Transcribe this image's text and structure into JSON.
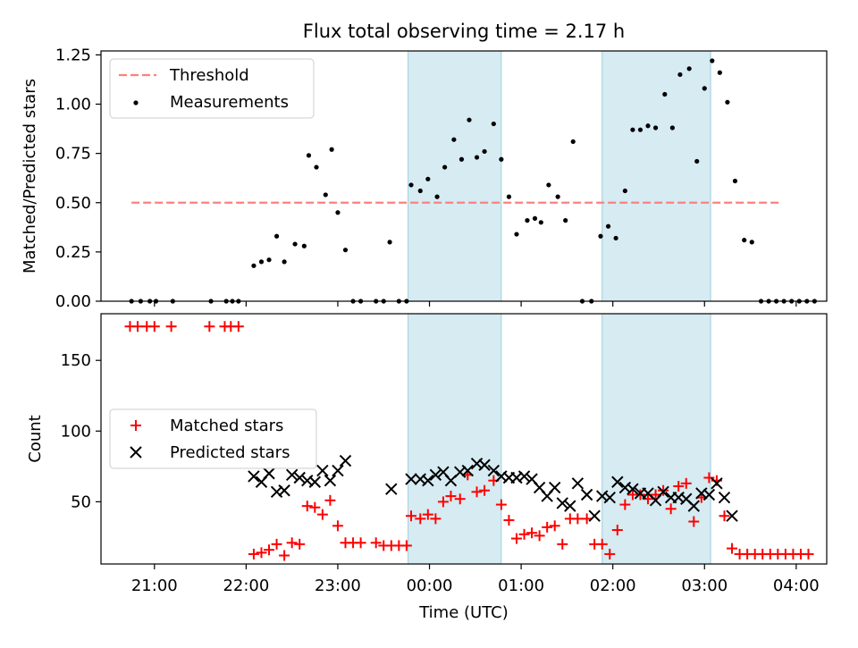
{
  "chart_data": [
    {
      "type": "scatter",
      "title": "Flux total observing time = 2.17 h",
      "xlabel": "",
      "ylabel": "Matched/Predicted stars",
      "xlim": [
        20.417,
        4.333
      ],
      "ylim": [
        0,
        1.27
      ],
      "yticks": [
        0,
        0.25,
        0.5,
        0.75,
        1.0,
        1.25
      ],
      "ytick_labels": [
        "0.00",
        "0.25",
        "0.50",
        "0.75",
        "1.00",
        "1.25"
      ],
      "legend": {
        "position": "top-left",
        "entries": [
          "Threshold",
          "Measurements"
        ]
      },
      "threshold": {
        "name": "Threshold",
        "value": 0.5,
        "x_start": "20:45",
        "x_end": "03:50",
        "color": "#ff7f7f"
      },
      "shaded_spans": [
        [
          "23:46",
          "00:47"
        ],
        [
          "01:53",
          "03:04"
        ]
      ],
      "series": [
        {
          "name": "Measurements",
          "color": "#000000",
          "points": [
            [
              "20:45",
              0
            ],
            [
              "20:51",
              0
            ],
            [
              "20:57",
              0
            ],
            [
              "21:01",
              0
            ],
            [
              "21:12",
              0
            ],
            [
              "21:37",
              0
            ],
            [
              "21:47",
              0
            ],
            [
              "21:51",
              0
            ],
            [
              "21:55",
              0
            ],
            [
              "22:05",
              0.18
            ],
            [
              "22:10",
              0.2
            ],
            [
              "22:15",
              0.21
            ],
            [
              "22:20",
              0.33
            ],
            [
              "22:25",
              0.2
            ],
            [
              "22:32",
              0.29
            ],
            [
              "22:38",
              0.28
            ],
            [
              "22:41",
              0.74
            ],
            [
              "22:46",
              0.68
            ],
            [
              "22:52",
              0.54
            ],
            [
              "22:56",
              0.77
            ],
            [
              "23:00",
              0.45
            ],
            [
              "23:05",
              0.26
            ],
            [
              "23:10",
              0
            ],
            [
              "23:15",
              0
            ],
            [
              "23:25",
              0
            ],
            [
              "23:30",
              0
            ],
            [
              "23:34",
              0.3
            ],
            [
              "23:40",
              0
            ],
            [
              "23:45",
              0
            ],
            [
              "23:48",
              0.59
            ],
            [
              "23:54",
              0.56
            ],
            [
              "23:59",
              0.62
            ],
            [
              "00:05",
              0.53
            ],
            [
              "00:10",
              0.68
            ],
            [
              "00:16",
              0.82
            ],
            [
              "00:21",
              0.72
            ],
            [
              "00:26",
              0.92
            ],
            [
              "00:31",
              0.73
            ],
            [
              "00:36",
              0.76
            ],
            [
              "00:42",
              0.9
            ],
            [
              "00:47",
              0.72
            ],
            [
              "00:52",
              0.53
            ],
            [
              "00:57",
              0.34
            ],
            [
              "01:04",
              0.41
            ],
            [
              "01:09",
              0.42
            ],
            [
              "01:13",
              0.4
            ],
            [
              "01:18",
              0.59
            ],
            [
              "01:24",
              0.53
            ],
            [
              "01:29",
              0.41
            ],
            [
              "01:34",
              0.81
            ],
            [
              "01:40",
              0
            ],
            [
              "01:46",
              0
            ],
            [
              "01:52",
              0.33
            ],
            [
              "01:57",
              0.38
            ],
            [
              "02:02",
              0.32
            ],
            [
              "02:08",
              0.56
            ],
            [
              "02:13",
              0.87
            ],
            [
              "02:18",
              0.87
            ],
            [
              "02:23",
              0.89
            ],
            [
              "02:28",
              0.88
            ],
            [
              "02:34",
              1.05
            ],
            [
              "02:39",
              0.88
            ],
            [
              "02:44",
              1.15
            ],
            [
              "02:50",
              1.18
            ],
            [
              "02:55",
              0.71
            ],
            [
              "03:00",
              1.08
            ],
            [
              "03:05",
              1.22
            ],
            [
              "03:10",
              1.16
            ],
            [
              "03:15",
              1.01
            ],
            [
              "03:20",
              0.61
            ],
            [
              "03:26",
              0.31
            ],
            [
              "03:31",
              0.3
            ],
            [
              "03:37",
              0
            ],
            [
              "03:42",
              0
            ],
            [
              "03:47",
              0
            ],
            [
              "03:52",
              0
            ],
            [
              "03:57",
              0
            ],
            [
              "04:02",
              0
            ],
            [
              "04:07",
              0
            ],
            [
              "04:12",
              0
            ]
          ]
        }
      ]
    },
    {
      "type": "scatter",
      "title": "",
      "xlabel": "Time (UTC)",
      "ylabel": "Count",
      "xlim": [
        20.417,
        4.333
      ],
      "ylim": [
        6.0,
        183.0
      ],
      "yticks": [
        50,
        100,
        150
      ],
      "ytick_labels": [
        "50",
        "100",
        "150"
      ],
      "xticks": [
        "21:00",
        "22:00",
        "23:00",
        "00:00",
        "01:00",
        "02:00",
        "03:00",
        "04:00"
      ],
      "legend": {
        "position": "center-left",
        "entries": [
          "Matched stars",
          "Predicted stars"
        ]
      },
      "shaded_spans": [
        [
          "23:46",
          "00:47"
        ],
        [
          "01:53",
          "03:04"
        ]
      ],
      "series": [
        {
          "name": "Matched stars",
          "color": "#ff0000",
          "marker": "+",
          "points": [
            [
              "20:44",
              174
            ],
            [
              "20:49",
              174
            ],
            [
              "20:55",
              174
            ],
            [
              "21:00",
              174
            ],
            [
              "21:11",
              174
            ],
            [
              "21:36",
              174
            ],
            [
              "21:46",
              174
            ],
            [
              "21:50",
              174
            ],
            [
              "21:55",
              174
            ],
            [
              "22:05",
              13
            ],
            [
              "22:10",
              14
            ],
            [
              "22:15",
              16
            ],
            [
              "22:20",
              20
            ],
            [
              "22:25",
              12
            ],
            [
              "22:30",
              21
            ],
            [
              "22:35",
              20
            ],
            [
              "22:40",
              47
            ],
            [
              "22:45",
              46
            ],
            [
              "22:50",
              41
            ],
            [
              "22:55",
              51
            ],
            [
              "23:00",
              33
            ],
            [
              "23:05",
              21
            ],
            [
              "23:10",
              21
            ],
            [
              "23:15",
              21
            ],
            [
              "23:25",
              21
            ],
            [
              "23:30",
              19
            ],
            [
              "23:35",
              19
            ],
            [
              "23:40",
              19
            ],
            [
              "23:45",
              19
            ],
            [
              "23:48",
              40
            ],
            [
              "23:54",
              38
            ],
            [
              "23:59",
              41
            ],
            [
              "00:04",
              38
            ],
            [
              "00:09",
              50
            ],
            [
              "00:14",
              54
            ],
            [
              "00:20",
              52
            ],
            [
              "00:25",
              69
            ],
            [
              "00:31",
              57
            ],
            [
              "00:36",
              58
            ],
            [
              "00:42",
              65
            ],
            [
              "00:47",
              48
            ],
            [
              "00:52",
              37
            ],
            [
              "00:57",
              24
            ],
            [
              "01:02",
              27
            ],
            [
              "01:07",
              28
            ],
            [
              "01:12",
              26
            ],
            [
              "01:17",
              32
            ],
            [
              "01:22",
              33
            ],
            [
              "01:27",
              20
            ],
            [
              "01:32",
              38
            ],
            [
              "01:37",
              38
            ],
            [
              "01:43",
              38
            ],
            [
              "01:48",
              20
            ],
            [
              "01:53",
              20
            ],
            [
              "01:58",
              13
            ],
            [
              "02:03",
              30
            ],
            [
              "02:08",
              48
            ],
            [
              "02:13",
              55
            ],
            [
              "02:18",
              55
            ],
            [
              "02:23",
              52
            ],
            [
              "02:28",
              55
            ],
            [
              "02:33",
              58
            ],
            [
              "02:38",
              45
            ],
            [
              "02:43",
              61
            ],
            [
              "02:48",
              63
            ],
            [
              "02:53",
              36
            ],
            [
              "02:58",
              53
            ],
            [
              "03:03",
              67
            ],
            [
              "03:08",
              65
            ],
            [
              "03:13",
              40
            ],
            [
              "03:18",
              17
            ],
            [
              "03:23",
              13
            ],
            [
              "03:28",
              13
            ],
            [
              "03:33",
              13
            ],
            [
              "03:38",
              13
            ],
            [
              "03:43",
              13
            ],
            [
              "03:48",
              13
            ],
            [
              "03:53",
              13
            ],
            [
              "03:58",
              13
            ],
            [
              "04:03",
              13
            ],
            [
              "04:08",
              13
            ]
          ]
        },
        {
          "name": "Predicted stars",
          "color": "#000000",
          "marker": "x",
          "points": [
            [
              "22:05",
              68
            ],
            [
              "22:10",
              64
            ],
            [
              "22:15",
              70
            ],
            [
              "22:20",
              57
            ],
            [
              "22:25",
              58
            ],
            [
              "22:30",
              69
            ],
            [
              "22:35",
              67
            ],
            [
              "22:40",
              65
            ],
            [
              "22:45",
              64
            ],
            [
              "22:50",
              72
            ],
            [
              "22:55",
              65
            ],
            [
              "23:00",
              72
            ],
            [
              "23:05",
              79
            ],
            [
              "23:35",
              59
            ],
            [
              "23:48",
              66
            ],
            [
              "23:54",
              66
            ],
            [
              "23:59",
              65
            ],
            [
              "00:04",
              69
            ],
            [
              "00:09",
              71
            ],
            [
              "00:14",
              65
            ],
            [
              "00:20",
              71
            ],
            [
              "00:25",
              72
            ],
            [
              "00:31",
              77
            ],
            [
              "00:36",
              76
            ],
            [
              "00:42",
              72
            ],
            [
              "00:47",
              68
            ],
            [
              "00:52",
              67
            ],
            [
              "00:57",
              67
            ],
            [
              "01:02",
              68
            ],
            [
              "01:07",
              66
            ],
            [
              "01:12",
              60
            ],
            [
              "01:17",
              54
            ],
            [
              "01:22",
              60
            ],
            [
              "01:27",
              49
            ],
            [
              "01:32",
              47
            ],
            [
              "01:37",
              63
            ],
            [
              "01:43",
              55
            ],
            [
              "01:48",
              40
            ],
            [
              "01:53",
              54
            ],
            [
              "01:58",
              53
            ],
            [
              "02:03",
              64
            ],
            [
              "02:08",
              60
            ],
            [
              "02:13",
              59
            ],
            [
              "02:18",
              56
            ],
            [
              "02:23",
              56
            ],
            [
              "02:28",
              51
            ],
            [
              "02:33",
              57
            ],
            [
              "02:38",
              53
            ],
            [
              "02:43",
              53
            ],
            [
              "02:48",
              52
            ],
            [
              "02:53",
              47
            ],
            [
              "02:58",
              56
            ],
            [
              "03:03",
              55
            ],
            [
              "03:08",
              63
            ],
            [
              "03:13",
              53
            ],
            [
              "03:18",
              40
            ]
          ]
        }
      ]
    }
  ]
}
